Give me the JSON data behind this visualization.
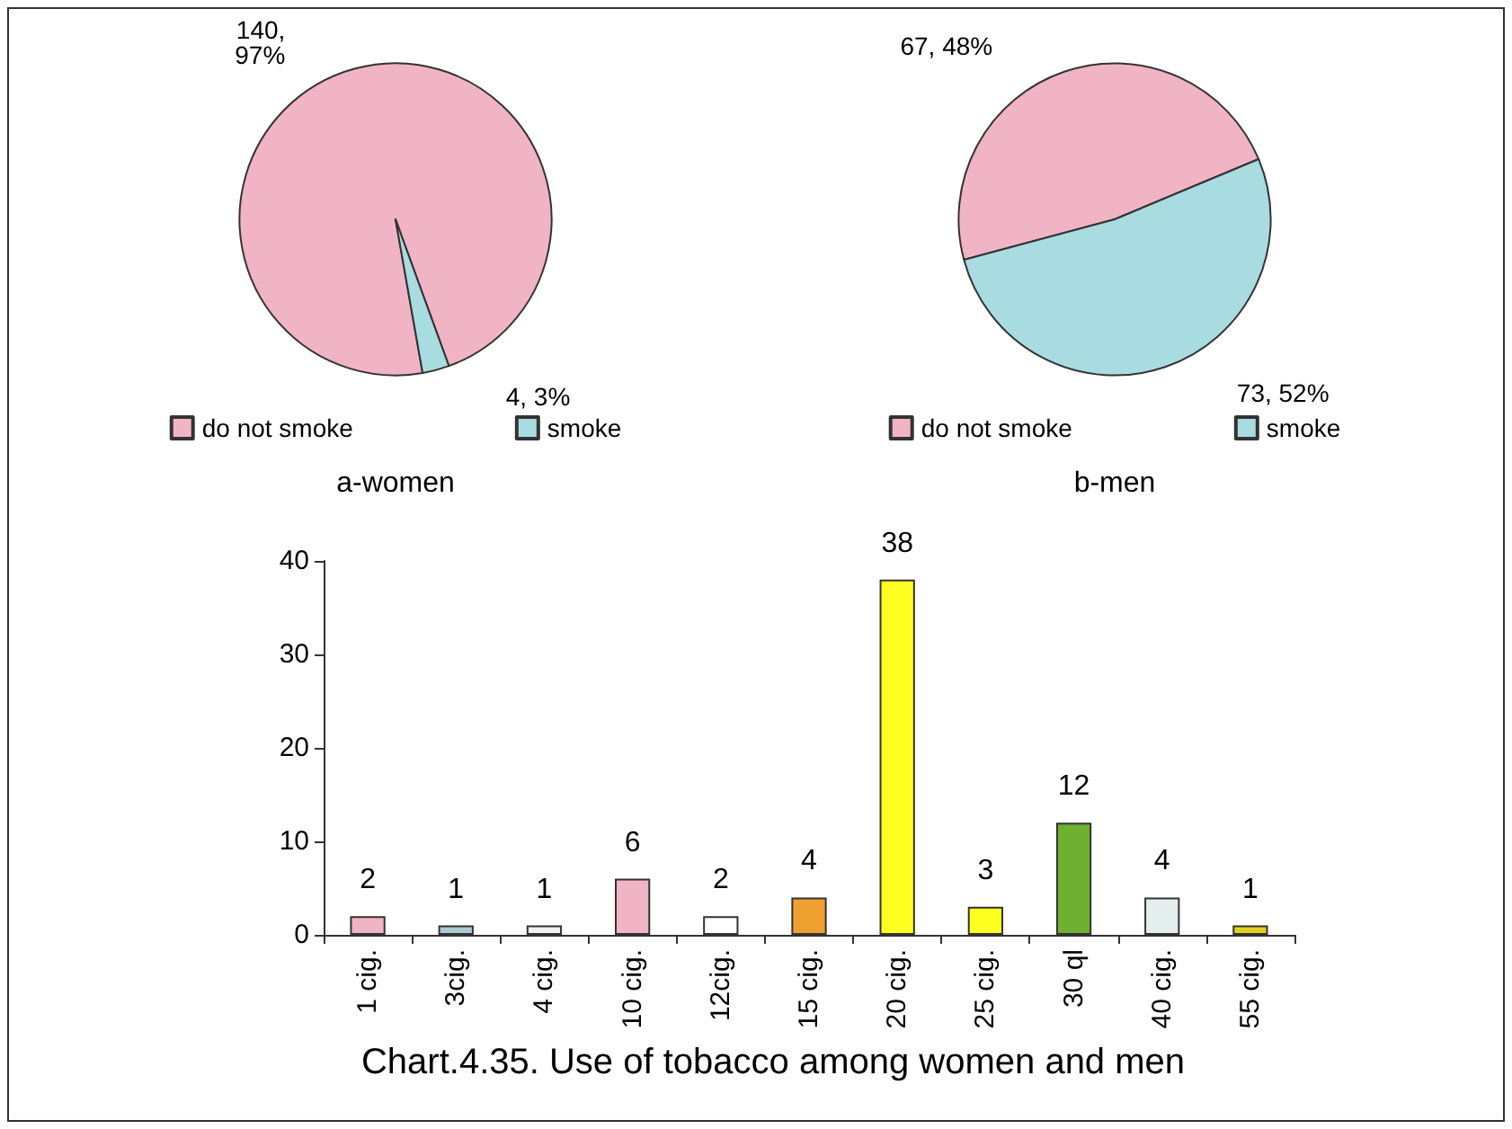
{
  "chart_data": [
    {
      "type": "pie",
      "title": "a-women",
      "categories": [
        "do not smoke",
        "smoke"
      ],
      "values": [
        140,
        4
      ],
      "colors": [
        "#f0b4c4",
        "#a8dce0"
      ],
      "value_labels": [
        "140,\n97%",
        "4, 3%"
      ],
      "legend": "bottom"
    },
    {
      "type": "pie",
      "title": "b-men",
      "categories": [
        "do not smoke",
        "smoke"
      ],
      "values": [
        67,
        73
      ],
      "colors": [
        "#f0b4c4",
        "#a8dce0"
      ],
      "value_labels": [
        "67, 48%",
        "73, 52%"
      ],
      "legend": "bottom"
    },
    {
      "type": "bar",
      "categories": [
        "1 cig.",
        "3cig.",
        "4 cig.",
        "10 cig.",
        "12cig.",
        "15 cig.",
        "20 cig.",
        "25 cig.",
        "30 ql",
        "40 cig.",
        "55 cig."
      ],
      "values": [
        2,
        1,
        1,
        6,
        2,
        4,
        38,
        3,
        12,
        4,
        1
      ],
      "colors": [
        "#f0b4c4",
        "#a8ccd0",
        "#eef3f3",
        "#f0b4c4",
        "#ffffff",
        "#f0a030",
        "#ffff20",
        "#ffff20",
        "#70b030",
        "#e4eeee",
        "#e0d020"
      ],
      "ylim": [
        0,
        40
      ],
      "yticks": [
        0,
        10,
        20,
        30,
        40
      ],
      "grid": false,
      "data_labels": true,
      "annotations": [
        "Chart.4.35. Use of tobacco among women and men"
      ]
    }
  ]
}
